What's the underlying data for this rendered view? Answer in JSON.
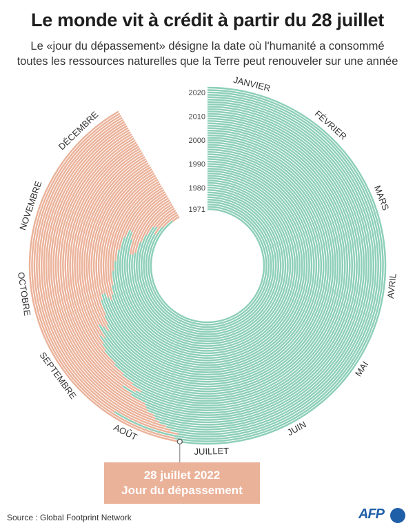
{
  "header": {
    "title": "Le monde vit à crédit à partir du 28 juillet",
    "subtitle_line1": "Le «jour du dépassement» désigne la date où l'humanité a consommé",
    "subtitle_line2": "toutes les ressources naturelles que la Terre peut renouveler sur une année"
  },
  "callout": {
    "line1": "28 juillet 2022",
    "line2": "Jour du dépassement"
  },
  "footer": {
    "source": "Source : Global Footprint Network",
    "logo_text": "AFP"
  },
  "colors": {
    "sustainable": "#8dcfb8",
    "deficit": "#ebb29a",
    "callout_bg": "#ebb29a",
    "logo": "#1f5fa8"
  },
  "chart_data": {
    "type": "radial-bar",
    "start_year": 1971,
    "end_year": 2022,
    "year_ticks": [
      "1971",
      "1980",
      "1990",
      "2000",
      "2010",
      "2020"
    ],
    "months": [
      "JANVIER",
      "FÉVRIER",
      "MARS",
      "AVRIL",
      "MAI",
      "JUIN",
      "JUILLET",
      "AOÛT",
      "SEPTEMBRE",
      "OCTOBRE",
      "NOVEMBRE",
      "DÉCEMBRE"
    ],
    "overshoot_day_of_year": [
      356,
      344,
      333,
      340,
      338,
      328,
      320,
      310,
      308,
      308,
      320,
      325,
      326,
      320,
      310,
      302,
      295,
      286,
      280,
      277,
      279,
      282,
      282,
      279,
      270,
      265,
      262,
      265,
      267,
      260,
      262,
      258,
      255,
      247,
      241,
      235,
      230,
      232,
      238,
      233,
      226,
      225,
      224,
      221,
      220,
      218,
      215,
      213,
      210,
      235,
      211,
      209
    ],
    "highlight": {
      "year": 2022,
      "label": "28 juillet 2022"
    }
  }
}
